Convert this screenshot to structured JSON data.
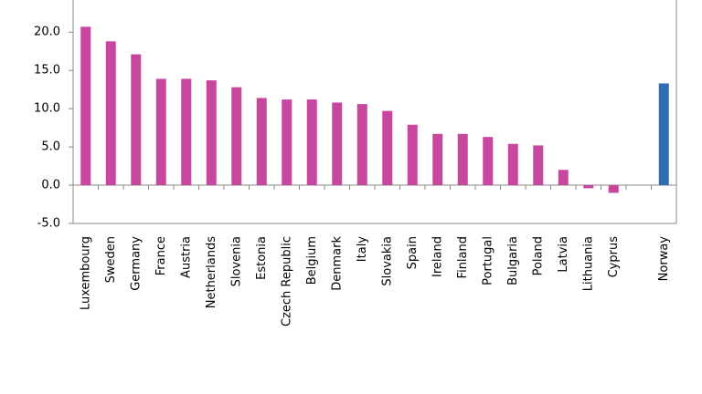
{
  "chart_data": {
    "type": "bar",
    "categories": [
      "Luxembourg",
      "Sweden",
      "Germany",
      "France",
      "Austria",
      "Netherlands",
      "Slovenia",
      "Estonia",
      "Czech Republic",
      "Belgium",
      "Denmark",
      "Italy",
      "Slovakia",
      "Spain",
      "Ireland",
      "Finland",
      "Portugal",
      "Bulgaria",
      "Poland",
      "Latvia",
      "Lithuania",
      "Cyprus",
      null,
      "Norway"
    ],
    "values": [
      20.7,
      18.8,
      17.1,
      13.9,
      13.9,
      13.7,
      12.8,
      11.4,
      11.2,
      11.2,
      10.8,
      10.6,
      9.7,
      7.9,
      6.7,
      6.7,
      6.3,
      5.4,
      5.2,
      2.0,
      -0.4,
      -1.0,
      null,
      13.3
    ],
    "colors": [
      "#c8479e",
      "#c8479e",
      "#c8479e",
      "#c8479e",
      "#c8479e",
      "#c8479e",
      "#c8479e",
      "#c8479e",
      "#c8479e",
      "#c8479e",
      "#c8479e",
      "#c8479e",
      "#c8479e",
      "#c8479e",
      "#c8479e",
      "#c8479e",
      "#c8479e",
      "#c8479e",
      "#c8479e",
      "#c8479e",
      "#c8479e",
      "#c8479e",
      null,
      "#2e6db4"
    ],
    "ylim": [
      -5,
      24.2
    ],
    "yticks": [
      {
        "value": -5,
        "label": "-5.0"
      },
      {
        "value": 0,
        "label": "0.0"
      },
      {
        "value": 5,
        "label": "5.0"
      },
      {
        "value": 10,
        "label": "10.0"
      },
      {
        "value": 15,
        "label": "15.0"
      },
      {
        "value": 20,
        "label": "20.0"
      }
    ],
    "grid": false
  }
}
